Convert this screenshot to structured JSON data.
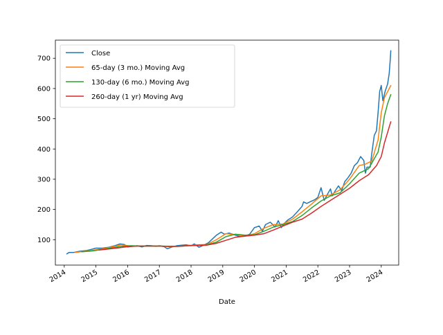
{
  "chart_data": {
    "type": "line",
    "xlabel": "Date",
    "ylabel": "",
    "title": "",
    "xlim": [
      2013.72,
      2024.55
    ],
    "ylim": [
      16,
      760
    ],
    "x_ticks": [
      {
        "value": 2014,
        "label": "2014"
      },
      {
        "value": 2015,
        "label": "2015"
      },
      {
        "value": 2016,
        "label": "2016"
      },
      {
        "value": 2017,
        "label": "2017"
      },
      {
        "value": 2018,
        "label": "2018"
      },
      {
        "value": 2019,
        "label": "2019"
      },
      {
        "value": 2020,
        "label": "2020"
      },
      {
        "value": 2021,
        "label": "2021"
      },
      {
        "value": 2022,
        "label": "2022"
      },
      {
        "value": 2023,
        "label": "2023"
      },
      {
        "value": 2024,
        "label": "2024"
      }
    ],
    "y_ticks": [
      {
        "value": 100,
        "label": "100"
      },
      {
        "value": 200,
        "label": "200"
      },
      {
        "value": 300,
        "label": "300"
      },
      {
        "value": 400,
        "label": "400"
      },
      {
        "value": 500,
        "label": "500"
      },
      {
        "value": 600,
        "label": "600"
      },
      {
        "value": 700,
        "label": "700"
      }
    ],
    "grid": false,
    "legend_position": "top-left",
    "series": [
      {
        "name": "Close",
        "color": "#1f77b4",
        "points": [
          [
            2014.08,
            53
          ],
          [
            2014.15,
            58
          ],
          [
            2014.3,
            58
          ],
          [
            2014.5,
            62
          ],
          [
            2014.7,
            64
          ],
          [
            2014.85,
            68
          ],
          [
            2015.0,
            72
          ],
          [
            2015.2,
            72
          ],
          [
            2015.4,
            75
          ],
          [
            2015.6,
            80
          ],
          [
            2015.75,
            86
          ],
          [
            2015.9,
            84
          ],
          [
            2016.0,
            76
          ],
          [
            2016.15,
            78
          ],
          [
            2016.3,
            80
          ],
          [
            2016.45,
            76
          ],
          [
            2016.6,
            81
          ],
          [
            2016.75,
            80
          ],
          [
            2016.9,
            78
          ],
          [
            2017.0,
            80
          ],
          [
            2017.15,
            77
          ],
          [
            2017.25,
            70
          ],
          [
            2017.4,
            76
          ],
          [
            2017.55,
            80
          ],
          [
            2017.7,
            82
          ],
          [
            2017.85,
            83
          ],
          [
            2018.0,
            80
          ],
          [
            2018.1,
            86
          ],
          [
            2018.25,
            75
          ],
          [
            2018.4,
            82
          ],
          [
            2018.55,
            90
          ],
          [
            2018.7,
            105
          ],
          [
            2018.8,
            115
          ],
          [
            2018.95,
            125
          ],
          [
            2019.05,
            118
          ],
          [
            2019.2,
            122
          ],
          [
            2019.4,
            115
          ],
          [
            2019.55,
            110
          ],
          [
            2019.7,
            112
          ],
          [
            2019.85,
            118
          ],
          [
            2020.0,
            140
          ],
          [
            2020.15,
            145
          ],
          [
            2020.25,
            128
          ],
          [
            2020.35,
            150
          ],
          [
            2020.5,
            158
          ],
          [
            2020.65,
            142
          ],
          [
            2020.75,
            163
          ],
          [
            2020.85,
            140
          ],
          [
            2020.95,
            155
          ],
          [
            2021.05,
            165
          ],
          [
            2021.2,
            175
          ],
          [
            2021.35,
            192
          ],
          [
            2021.5,
            210
          ],
          [
            2021.55,
            225
          ],
          [
            2021.65,
            220
          ],
          [
            2021.75,
            225
          ],
          [
            2021.9,
            232
          ],
          [
            2022.0,
            240
          ],
          [
            2022.1,
            272
          ],
          [
            2022.2,
            230
          ],
          [
            2022.3,
            250
          ],
          [
            2022.4,
            268
          ],
          [
            2022.45,
            245
          ],
          [
            2022.55,
            262
          ],
          [
            2022.65,
            278
          ],
          [
            2022.75,
            262
          ],
          [
            2022.85,
            292
          ],
          [
            2022.95,
            305
          ],
          [
            2023.05,
            320
          ],
          [
            2023.15,
            345
          ],
          [
            2023.25,
            355
          ],
          [
            2023.35,
            375
          ],
          [
            2023.45,
            362
          ],
          [
            2023.5,
            320
          ],
          [
            2023.55,
            340
          ],
          [
            2023.65,
            340
          ],
          [
            2023.7,
            385
          ],
          [
            2023.78,
            445
          ],
          [
            2023.85,
            460
          ],
          [
            2023.9,
            520
          ],
          [
            2023.95,
            590
          ],
          [
            2024.0,
            610
          ],
          [
            2024.05,
            560
          ],
          [
            2024.12,
            590
          ],
          [
            2024.2,
            615
          ],
          [
            2024.25,
            650
          ],
          [
            2024.28,
            690
          ],
          [
            2024.3,
            725
          ]
        ]
      },
      {
        "name": "65-day (3 mo.) Moving Avg",
        "color": "#ff7f0e",
        "points": [
          [
            2014.35,
            58
          ],
          [
            2014.6,
            61
          ],
          [
            2014.9,
            65
          ],
          [
            2015.2,
            70
          ],
          [
            2015.5,
            76
          ],
          [
            2015.8,
            83
          ],
          [
            2016.1,
            79
          ],
          [
            2016.4,
            79
          ],
          [
            2016.7,
            79
          ],
          [
            2017.0,
            79
          ],
          [
            2017.3,
            77
          ],
          [
            2017.6,
            78
          ],
          [
            2017.9,
            81
          ],
          [
            2018.2,
            83
          ],
          [
            2018.5,
            84
          ],
          [
            2018.8,
            100
          ],
          [
            2019.1,
            120
          ],
          [
            2019.4,
            117
          ],
          [
            2019.7,
            112
          ],
          [
            2020.0,
            120
          ],
          [
            2020.3,
            138
          ],
          [
            2020.6,
            150
          ],
          [
            2020.9,
            152
          ],
          [
            2021.2,
            168
          ],
          [
            2021.5,
            192
          ],
          [
            2021.8,
            218
          ],
          [
            2022.1,
            245
          ],
          [
            2022.4,
            248
          ],
          [
            2022.7,
            265
          ],
          [
            2023.0,
            300
          ],
          [
            2023.3,
            345
          ],
          [
            2023.5,
            350
          ],
          [
            2023.7,
            360
          ],
          [
            2023.9,
            430
          ],
          [
            2024.0,
            520
          ],
          [
            2024.1,
            570
          ],
          [
            2024.2,
            590
          ],
          [
            2024.3,
            610
          ]
        ]
      },
      {
        "name": "130-day (6 mo.) Moving Avg",
        "color": "#2ca02c",
        "points": [
          [
            2014.55,
            60
          ],
          [
            2014.9,
            63
          ],
          [
            2015.2,
            68
          ],
          [
            2015.5,
            73
          ],
          [
            2015.8,
            78
          ],
          [
            2016.1,
            80
          ],
          [
            2016.4,
            79
          ],
          [
            2016.7,
            79
          ],
          [
            2017.0,
            79
          ],
          [
            2017.3,
            78
          ],
          [
            2017.6,
            78
          ],
          [
            2017.9,
            80
          ],
          [
            2018.2,
            82
          ],
          [
            2018.5,
            83
          ],
          [
            2018.8,
            92
          ],
          [
            2019.1,
            110
          ],
          [
            2019.4,
            118
          ],
          [
            2019.7,
            115
          ],
          [
            2020.0,
            116
          ],
          [
            2020.3,
            128
          ],
          [
            2020.6,
            142
          ],
          [
            2020.9,
            150
          ],
          [
            2021.2,
            160
          ],
          [
            2021.5,
            180
          ],
          [
            2021.8,
            205
          ],
          [
            2022.1,
            228
          ],
          [
            2022.4,
            245
          ],
          [
            2022.7,
            255
          ],
          [
            2023.0,
            285
          ],
          [
            2023.3,
            320
          ],
          [
            2023.6,
            335
          ],
          [
            2023.9,
            390
          ],
          [
            2024.0,
            440
          ],
          [
            2024.1,
            510
          ],
          [
            2024.2,
            550
          ],
          [
            2024.3,
            580
          ]
        ]
      },
      {
        "name": "260-day (1 yr) Moving Avg",
        "color": "#d62728",
        "points": [
          [
            2015.1,
            66
          ],
          [
            2015.4,
            69
          ],
          [
            2015.7,
            73
          ],
          [
            2016.0,
            77
          ],
          [
            2016.3,
            79
          ],
          [
            2016.6,
            79
          ],
          [
            2017.0,
            79
          ],
          [
            2017.3,
            78
          ],
          [
            2017.6,
            78
          ],
          [
            2017.9,
            80
          ],
          [
            2018.2,
            81
          ],
          [
            2018.5,
            82
          ],
          [
            2018.8,
            88
          ],
          [
            2019.1,
            98
          ],
          [
            2019.4,
            108
          ],
          [
            2019.7,
            112
          ],
          [
            2020.0,
            115
          ],
          [
            2020.3,
            120
          ],
          [
            2020.6,
            132
          ],
          [
            2020.9,
            145
          ],
          [
            2021.2,
            158
          ],
          [
            2021.5,
            168
          ],
          [
            2021.8,
            188
          ],
          [
            2022.1,
            210
          ],
          [
            2022.4,
            230
          ],
          [
            2022.7,
            250
          ],
          [
            2023.0,
            270
          ],
          [
            2023.3,
            295
          ],
          [
            2023.6,
            315
          ],
          [
            2023.85,
            345
          ],
          [
            2024.0,
            375
          ],
          [
            2024.1,
            420
          ],
          [
            2024.2,
            455
          ],
          [
            2024.3,
            490
          ]
        ]
      }
    ]
  }
}
